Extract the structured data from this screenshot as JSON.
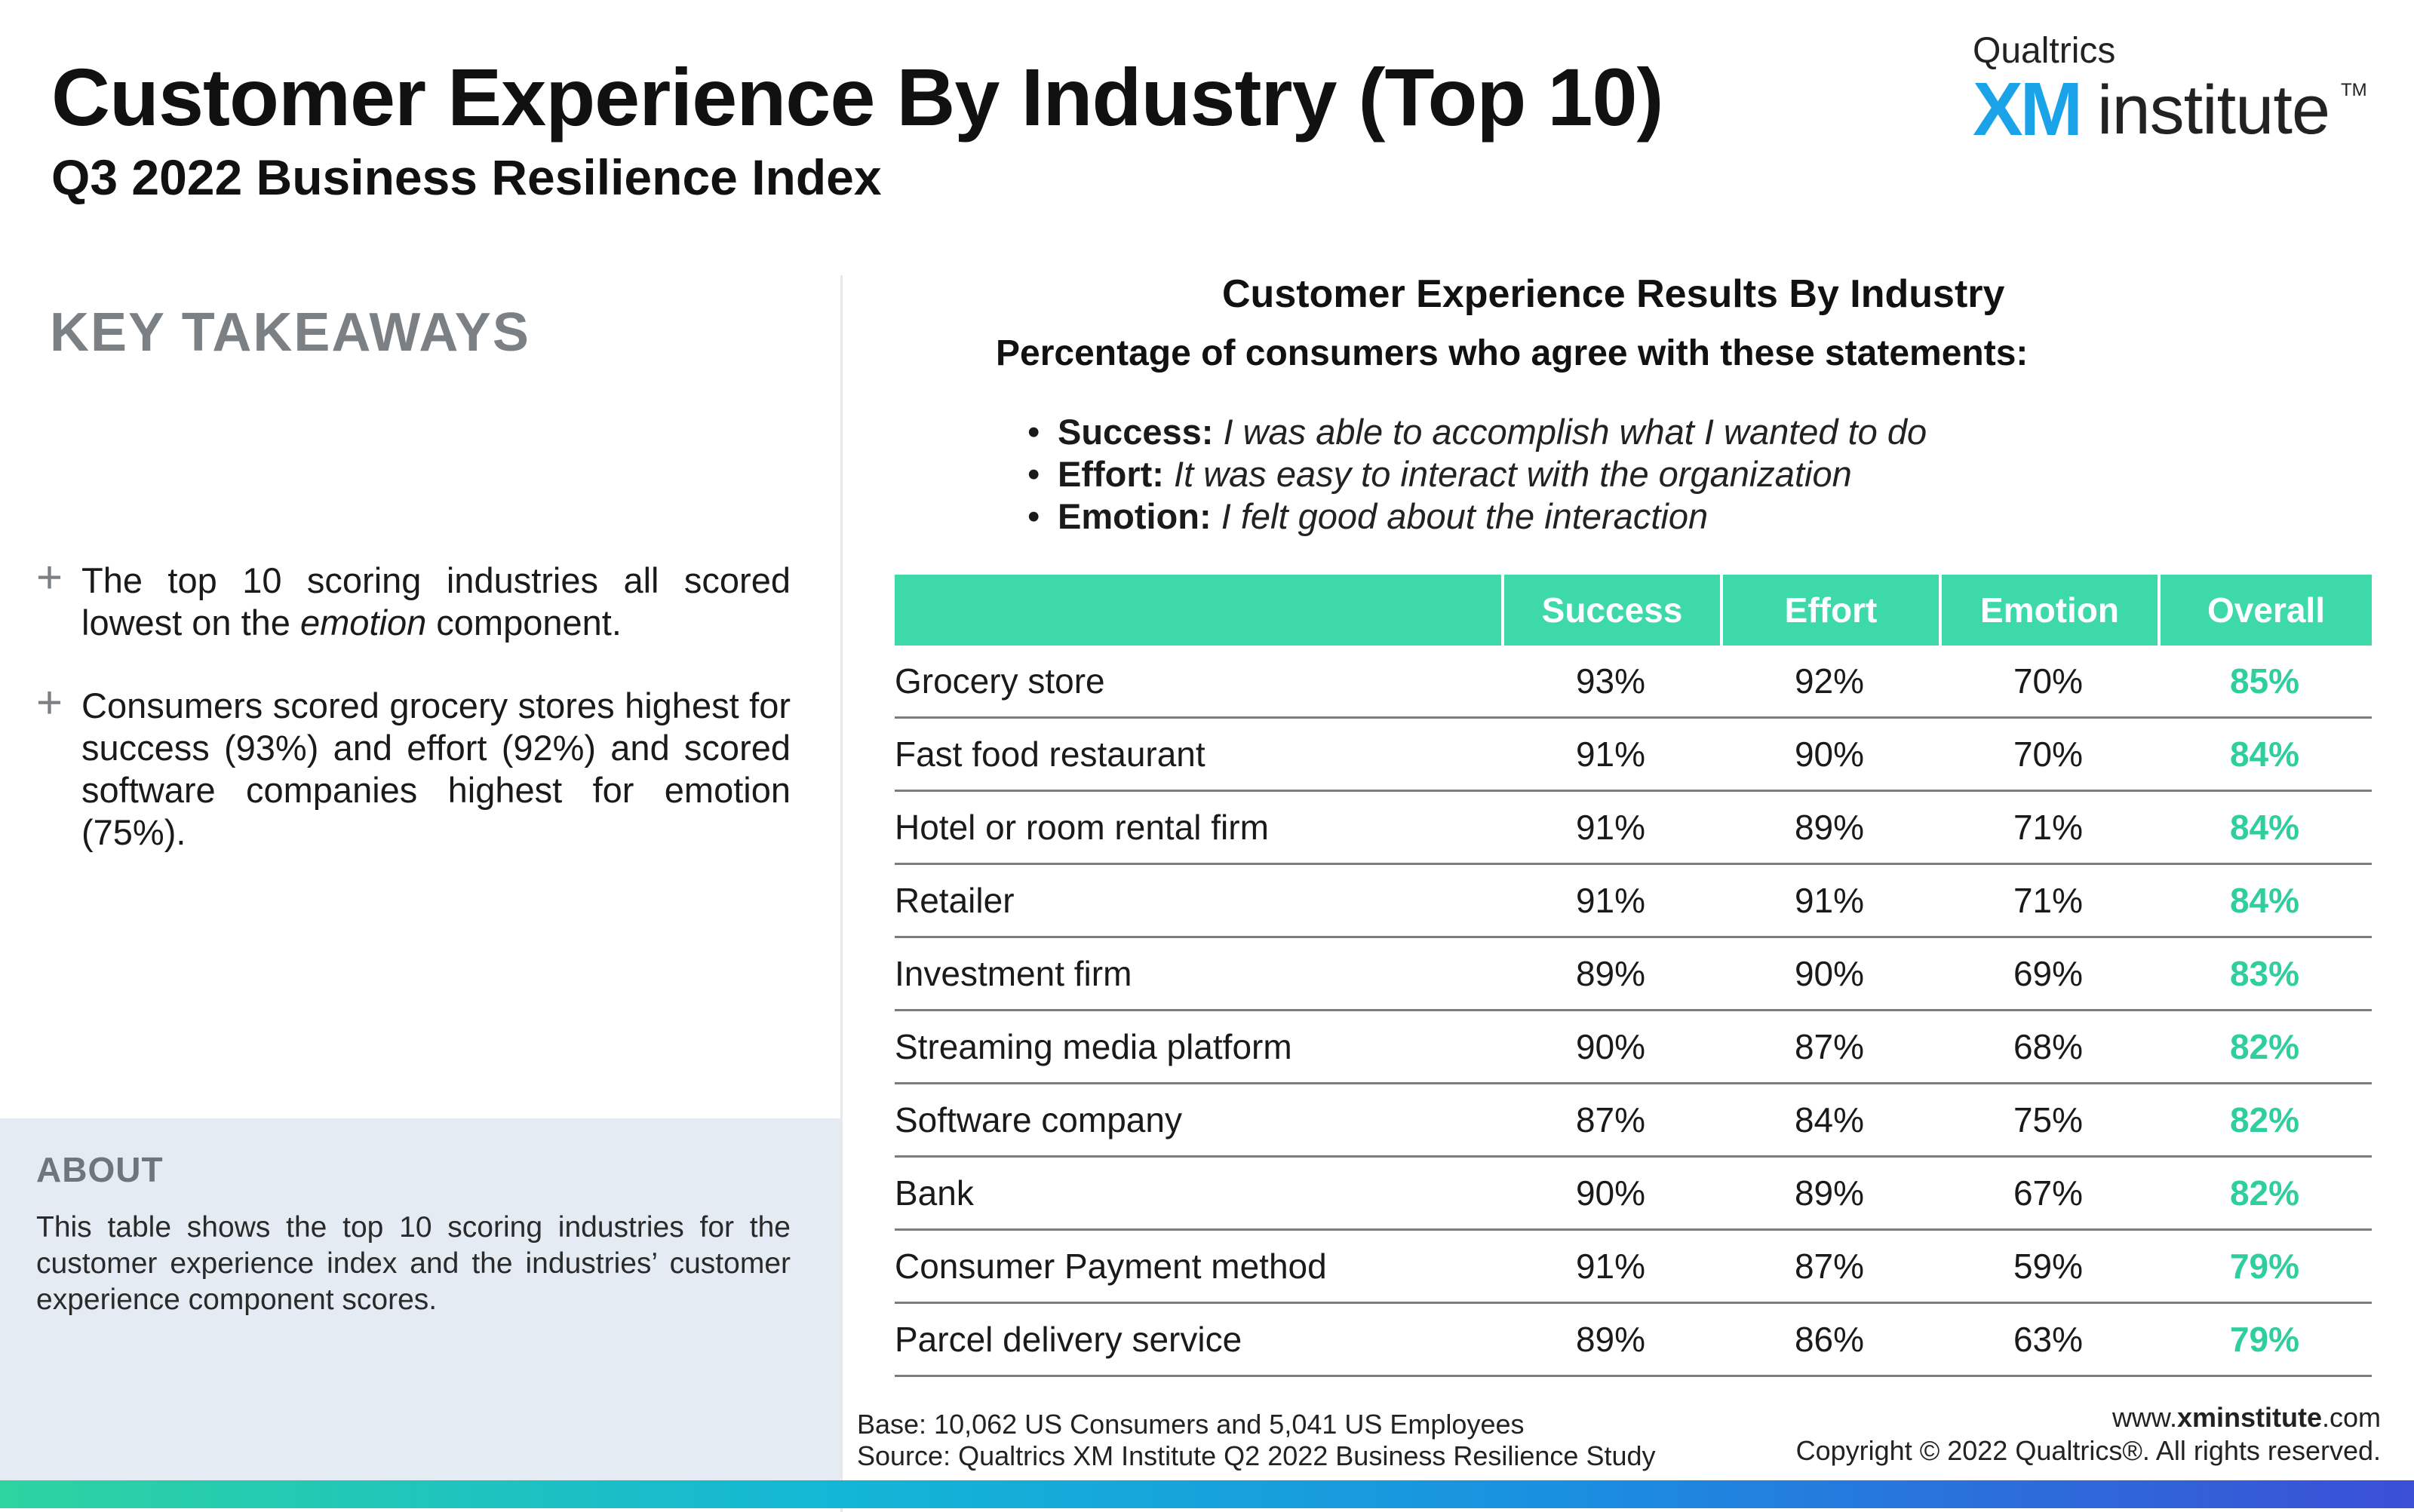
{
  "header": {
    "title": "Customer Experience By Industry (Top 10)",
    "subtitle": "Q3 2022 Business Resilience Index"
  },
  "logo": {
    "top": "Qualtrics",
    "xm": "XM",
    "institute": "institute",
    "tm": "TM"
  },
  "takeaways": {
    "title": "KEY TAKEAWAYS",
    "item1_pre": "The top 10 scoring industries all scored lowest on the ",
    "item1_em": "emotion",
    "item1_post": " component.",
    "item2": "Consumers scored grocery stores highest for success (93%) and effort (92%) and scored software companies highest for emotion (75%)."
  },
  "about": {
    "title": "ABOUT",
    "text": "This table shows the top 10 scoring industries for the customer experience index and the industries’ customer experience component scores."
  },
  "chart_data": {
    "type": "table",
    "title": "Customer Experience Results By Industry",
    "subtitle": "Percentage of consumers who agree with these statements:",
    "definitions": [
      {
        "term": "Success:",
        "text": "I was able to accomplish what I wanted to do"
      },
      {
        "term": "Effort:",
        "text": "It was easy to interact with the organization"
      },
      {
        "term": "Emotion:",
        "text": "I felt good about the interaction"
      }
    ],
    "columns": [
      "",
      "Success",
      "Effort",
      "Emotion",
      "Overall"
    ],
    "rows": [
      {
        "industry": "Grocery store",
        "success": "93%",
        "effort": "92%",
        "emotion": "70%",
        "overall": "85%"
      },
      {
        "industry": "Fast food restaurant",
        "success": "91%",
        "effort": "90%",
        "emotion": "70%",
        "overall": "84%"
      },
      {
        "industry": "Hotel or room rental firm",
        "success": "91%",
        "effort": "89%",
        "emotion": "71%",
        "overall": "84%"
      },
      {
        "industry": "Retailer",
        "success": "91%",
        "effort": "91%",
        "emotion": "71%",
        "overall": "84%"
      },
      {
        "industry": "Investment firm",
        "success": "89%",
        "effort": "90%",
        "emotion": "69%",
        "overall": "83%"
      },
      {
        "industry": "Streaming media platform",
        "success": "90%",
        "effort": "87%",
        "emotion": "68%",
        "overall": "82%"
      },
      {
        "industry": "Software company",
        "success": "87%",
        "effort": "84%",
        "emotion": "75%",
        "overall": "82%"
      },
      {
        "industry": "Bank",
        "success": "90%",
        "effort": "89%",
        "emotion": "67%",
        "overall": "82%"
      },
      {
        "industry": "Consumer Payment method",
        "success": "91%",
        "effort": "87%",
        "emotion": "59%",
        "overall": "79%"
      },
      {
        "industry": "Parcel delivery service",
        "success": "89%",
        "effort": "86%",
        "emotion": "63%",
        "overall": "79%"
      }
    ],
    "colors": {
      "header_fill": "#3dd9a9",
      "overall_text": "#2ecf9c"
    }
  },
  "footer": {
    "base": "Base: 10,062 US Consumers and 5,041 US Employees",
    "source": "Source: Qualtrics XM Institute Q2 2022 Business Resilience Study",
    "url_pre": "www.",
    "url_bold": "xminstitute",
    "url_post": ".com",
    "copyright": "Copyright © 2022 Qualtrics®. All rights reserved."
  }
}
